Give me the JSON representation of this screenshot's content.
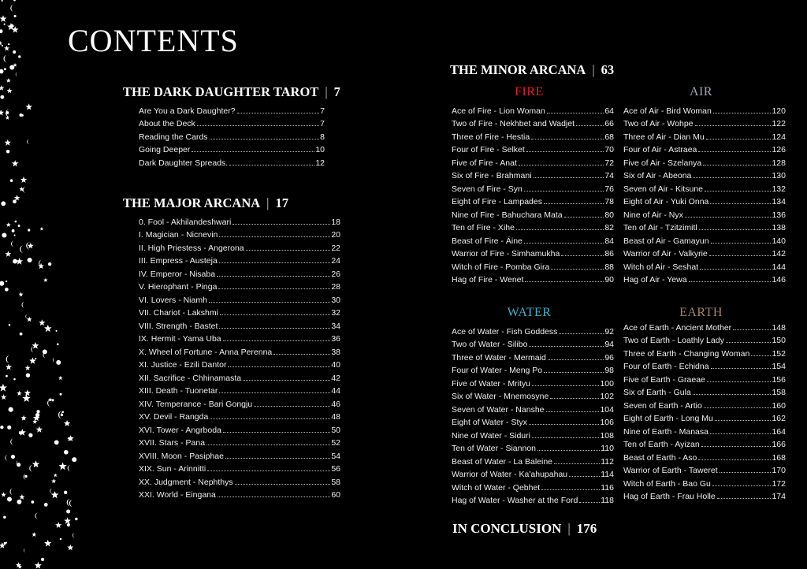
{
  "title": "CONTENTS",
  "sections": {
    "intro": {
      "heading": "THE DARK DAUGHTER TAROT",
      "page": "7",
      "entries": [
        {
          "label": "Are You a Dark Daughter?",
          "page": "7"
        },
        {
          "label": "About the Deck",
          "page": "7"
        },
        {
          "label": "Reading the Cards",
          "page": "8"
        },
        {
          "label": "Going Deeper",
          "page": "10"
        },
        {
          "label": "Dark Daughter Spreads.",
          "page": "12"
        }
      ]
    },
    "major": {
      "heading": "THE MAJOR ARCANA",
      "page": "17",
      "entries": [
        {
          "label": "0. Fool - Akhilandeshwari",
          "page": "18"
        },
        {
          "label": "I. Magician - Nicnevin",
          "page": "20"
        },
        {
          "label": "II. High Priestess - Angerona",
          "page": "22"
        },
        {
          "label": "III. Empress - Austeja",
          "page": "24"
        },
        {
          "label": "IV. Emperor - Nisaba",
          "page": "26"
        },
        {
          "label": "V. Hierophant - Pinga",
          "page": "28"
        },
        {
          "label": "VI. Lovers - Niamh",
          "page": "30"
        },
        {
          "label": "VII. Chariot - Lakshmi",
          "page": "32"
        },
        {
          "label": "VIII. Strength - Bastet",
          "page": "34"
        },
        {
          "label": "IX. Hermit - Yama Uba",
          "page": "36"
        },
        {
          "label": "X. Wheel of Fortune - Anna Perenna",
          "page": "38"
        },
        {
          "label": "XI. Justice - Ezili Dantor",
          "page": "40"
        },
        {
          "label": "XII. Sacrifice - Chhinamasta",
          "page": "42"
        },
        {
          "label": "XIII. Death - Tuonetar",
          "page": "44"
        },
        {
          "label": "XIV. Temperance - Bari Gongju",
          "page": "46"
        },
        {
          "label": "XV. Devil - Rangda",
          "page": "48"
        },
        {
          "label": "XVI. Tower - Angrboda",
          "page": "50"
        },
        {
          "label": "XVII. Stars - Pana",
          "page": "52"
        },
        {
          "label": "XVIII. Moon - Pasiphae",
          "page": "54"
        },
        {
          "label": "XIX. Sun - Arinnitti",
          "page": "56"
        },
        {
          "label": "XX. Judgment - Nephthys",
          "page": "58"
        },
        {
          "label": "XXI. World - Eingana",
          "page": "60"
        }
      ]
    },
    "minor": {
      "heading": "THE MINOR ARCANA",
      "page": "63",
      "suits": [
        {
          "name": "FIRE",
          "color": "#e0202c",
          "entries": [
            {
              "label": "Ace of Fire - Lion Woman",
              "page": "64"
            },
            {
              "label": "Two of Fire - Nekhbet and Wadjet",
              "page": "66"
            },
            {
              "label": "Three of Fire - Hestia",
              "page": "68"
            },
            {
              "label": "Four of Fire - Selket",
              "page": "70"
            },
            {
              "label": "Five of Fire - Anat",
              "page": "72"
            },
            {
              "label": "Six of Fire - Brahmani",
              "page": "74"
            },
            {
              "label": "Seven of Fire - Syn",
              "page": "76"
            },
            {
              "label": "Eight of Fire - Lampades",
              "page": "78"
            },
            {
              "label": "Nine of Fire - Bahuchara Mata",
              "page": "80"
            },
            {
              "label": "Ten of Fire - Xihe",
              "page": "82"
            },
            {
              "label": "Beast of Fire - Áine",
              "page": "84"
            },
            {
              "label": "Warrior of Fire - Simhamukha",
              "page": "86"
            },
            {
              "label": "Witch of Fire - Pomba Gira",
              "page": "88"
            },
            {
              "label": "Hag of Fire - Wenet",
              "page": "90"
            }
          ]
        },
        {
          "name": "AIR",
          "color": "#a4a8b8",
          "entries": [
            {
              "label": "Ace of Air - Bird Woman",
              "page": "120"
            },
            {
              "label": "Two of Air - Wohpe",
              "page": "122"
            },
            {
              "label": "Three of Air - Dian Mu",
              "page": "124"
            },
            {
              "label": "Four of Air - Astraea",
              "page": "126"
            },
            {
              "label": "Five of Air - Szelanya",
              "page": "128"
            },
            {
              "label": "Six of Air - Abeona",
              "page": "130"
            },
            {
              "label": "Seven of Air - Kitsune",
              "page": "132"
            },
            {
              "label": "Eight of Air - Yuki Onna",
              "page": "134"
            },
            {
              "label": "Nine of Air - Nyx",
              "page": "136"
            },
            {
              "label": "Ten of Air - Tzitzimitl",
              "page": "138"
            },
            {
              "label": "Beast of Air - Gamayun",
              "page": "140"
            },
            {
              "label": "Warrior of Air - Valkyrie",
              "page": "142"
            },
            {
              "label": "Witch of Air - Seshat",
              "page": "144"
            },
            {
              "label": "Hag of Air - Yewa",
              "page": "146"
            }
          ]
        },
        {
          "name": "WATER",
          "color": "#3cb4cc",
          "entries": [
            {
              "label": "Ace of Water - Fish Goddess",
              "page": "92"
            },
            {
              "label": "Two of Water - Silibo",
              "page": "94"
            },
            {
              "label": "Three of Water - Mermaid",
              "page": "96"
            },
            {
              "label": "Four of Water - Meng Po",
              "page": "98"
            },
            {
              "label": "Five of Water - Mrityu",
              "page": "100"
            },
            {
              "label": "Six of Water - Mnemosyne",
              "page": "102"
            },
            {
              "label": "Seven of Water - Nanshe",
              "page": "104"
            },
            {
              "label": "Eight of Water - Styx",
              "page": "106"
            },
            {
              "label": "Nine of Water - Siduri",
              "page": "108"
            },
            {
              "label": "Ten of Water - Siannon",
              "page": "110"
            },
            {
              "label": "Beast of Water - La Baleine",
              "page": "112"
            },
            {
              "label": "Warrior of Water - Ka'ahupahau",
              "page": "114"
            },
            {
              "label": "Witch of Water - Qebhet",
              "page": "116"
            },
            {
              "label": "Hag of Water - Washer at the Ford",
              "page": "118"
            }
          ]
        },
        {
          "name": "EARTH",
          "color": "#a4836c",
          "entries": [
            {
              "label": "Ace of Earth - Ancient Mother",
              "page": "148"
            },
            {
              "label": "Two of Earth - Loathly Lady",
              "page": "150"
            },
            {
              "label": "Three of Earth - Changing Woman",
              "page": "152"
            },
            {
              "label": "Four of Earth - Echidna",
              "page": "154"
            },
            {
              "label": "Five of Earth - Graeae",
              "page": "156"
            },
            {
              "label": "Six of Earth - Gula",
              "page": "158"
            },
            {
              "label": "Seven of Earth - Artio",
              "page": "160"
            },
            {
              "label": "Eight of Earth - Long Mu",
              "page": "162"
            },
            {
              "label": "Nine of Earth - Manasa",
              "page": "164"
            },
            {
              "label": "Ten of Earth - Ayizan",
              "page": "166"
            },
            {
              "label": "Beast of Earth - Aso",
              "page": "168"
            },
            {
              "label": "Warrior of Earth - Taweret",
              "page": "170"
            },
            {
              "label": "Witch of Earth - Bao Gu",
              "page": "172"
            },
            {
              "label": "Hag of Earth - Frau Holle",
              "page": "174"
            }
          ]
        }
      ]
    },
    "conclusion": {
      "heading": "IN CONCLUSION",
      "page": "176"
    }
  }
}
